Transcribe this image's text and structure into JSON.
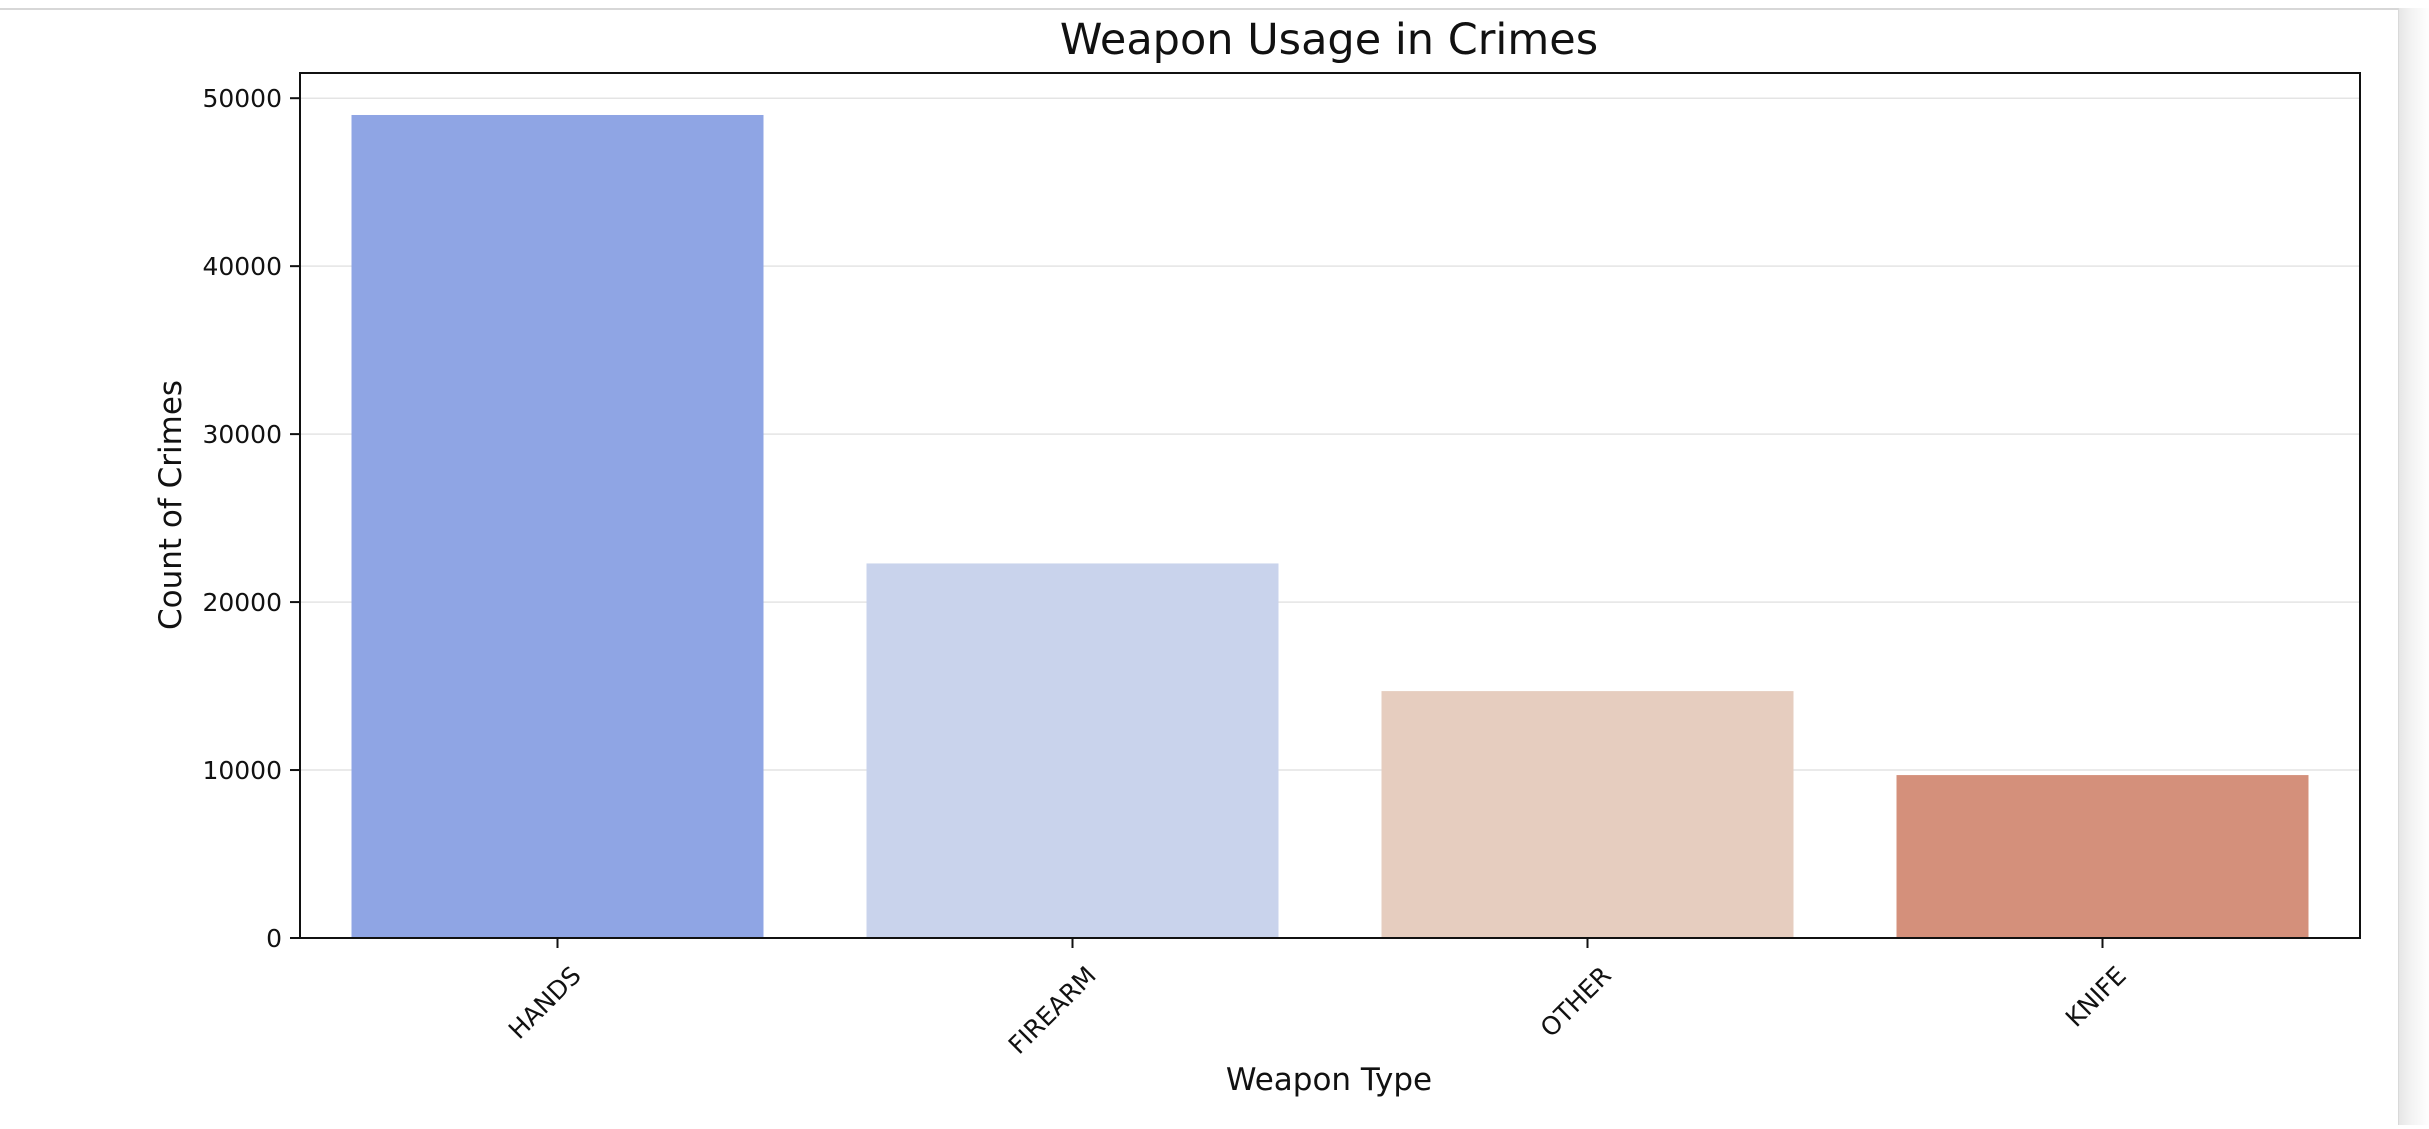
{
  "chart_data": {
    "type": "bar",
    "title": "Weapon Usage in Crimes",
    "xlabel": "Weapon Type",
    "ylabel": "Count of Crimes",
    "categories": [
      "HANDS",
      "FIREARM",
      "OTHER",
      "KNIFE"
    ],
    "values": [
      49000,
      22300,
      14700,
      9700
    ],
    "colors": [
      "#8fa5e4",
      "#c9d3ec",
      "#e6cdbf",
      "#d4907b"
    ],
    "ylim": [
      0,
      51500
    ],
    "yticks": [
      0,
      10000,
      20000,
      30000,
      40000,
      50000
    ],
    "ytick_labels": [
      "0",
      "10000",
      "20000",
      "30000",
      "40000",
      "50000"
    ],
    "grid": "horizontal",
    "legend": "none"
  }
}
